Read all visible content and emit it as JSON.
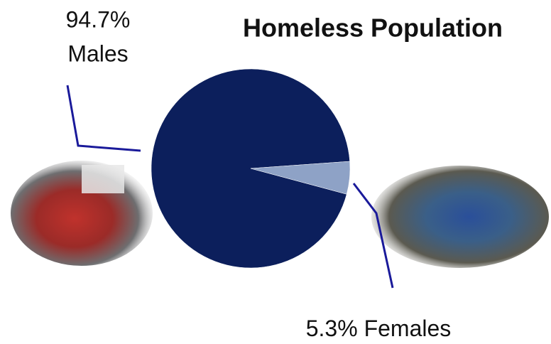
{
  "chart_data": {
    "type": "pie",
    "title": "Homeless Population",
    "categories": [
      "Males",
      "Females"
    ],
    "values": [
      94.7,
      5.3
    ],
    "value_labels": [
      "94.7%",
      "5.3%"
    ],
    "colors": [
      "#0c1f5c",
      "#8ea2c6"
    ]
  }
}
